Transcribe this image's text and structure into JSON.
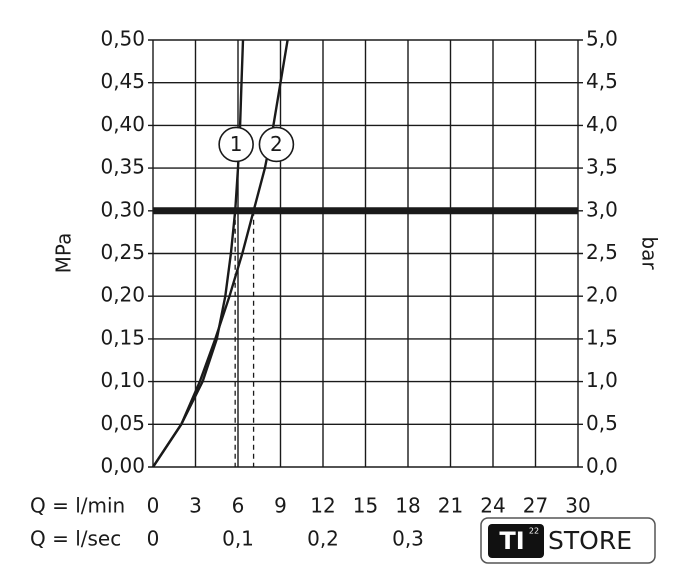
{
  "chart_data": {
    "type": "line",
    "y_label": "MPa",
    "y2_label": "bar",
    "x_label": "Q = l/min",
    "x2_label": "Q = l/sec",
    "xlim": [
      0,
      30
    ],
    "xticks": [
      0,
      3,
      6,
      9,
      12,
      15,
      18,
      21,
      24,
      27,
      30
    ],
    "x2lim": [
      0,
      0.5
    ],
    "x2ticks": [
      {
        "value": 0,
        "label": "0"
      },
      {
        "value": 0.1,
        "label": "0,1"
      },
      {
        "value": 0.2,
        "label": "0,2"
      },
      {
        "value": 0.3,
        "label": "0,3"
      }
    ],
    "ylim": [
      0,
      0.5
    ],
    "yticks": [
      {
        "value": 0,
        "label": "0,00"
      },
      {
        "value": 0.05,
        "label": "0,05"
      },
      {
        "value": 0.1,
        "label": "0,10"
      },
      {
        "value": 0.15,
        "label": "0,15"
      },
      {
        "value": 0.2,
        "label": "0,20"
      },
      {
        "value": 0.25,
        "label": "0,25"
      },
      {
        "value": 0.3,
        "label": "0,30"
      },
      {
        "value": 0.35,
        "label": "0,35"
      },
      {
        "value": 0.4,
        "label": "0,40"
      },
      {
        "value": 0.45,
        "label": "0,45"
      },
      {
        "value": 0.5,
        "label": "0,50"
      }
    ],
    "y2lim": [
      0,
      5
    ],
    "y2ticks": [
      {
        "value": 0,
        "label": "0,0"
      },
      {
        "value": 0.5,
        "label": "0,5"
      },
      {
        "value": 1,
        "label": "1,0"
      },
      {
        "value": 1.5,
        "label": "1,5"
      },
      {
        "value": 2,
        "label": "2,0"
      },
      {
        "value": 2.5,
        "label": "2,5"
      },
      {
        "value": 3,
        "label": "3,0"
      },
      {
        "value": 3.5,
        "label": "3,5"
      },
      {
        "value": 4,
        "label": "4,0"
      },
      {
        "value": 4.5,
        "label": "4,5"
      },
      {
        "value": 5,
        "label": "5,0"
      }
    ],
    "grid": true,
    "reference_y": 0.3,
    "dashed_x": [
      5.8,
      7.1
    ],
    "series": [
      {
        "name": "1",
        "color": "#1a1a1a",
        "x": [
          0,
          2,
          3.5,
          4.5,
          5.1,
          5.5,
          5.8,
          6.0,
          6.15,
          6.25,
          6.35
        ],
        "values": [
          0,
          0.05,
          0.1,
          0.15,
          0.2,
          0.25,
          0.3,
          0.35,
          0.4,
          0.45,
          0.5
        ]
      },
      {
        "name": "2",
        "color": "#1a1a1a",
        "x": [
          0,
          2,
          3.3,
          4.4,
          5.4,
          6.3,
          7.1,
          7.9,
          8.5,
          9.0,
          9.5
        ],
        "values": [
          0,
          0.05,
          0.1,
          0.15,
          0.2,
          0.25,
          0.3,
          0.35,
          0.4,
          0.45,
          0.5
        ]
      }
    ]
  },
  "logo": {
    "badge": "TI",
    "superscript": "22",
    "text": "STORE"
  }
}
